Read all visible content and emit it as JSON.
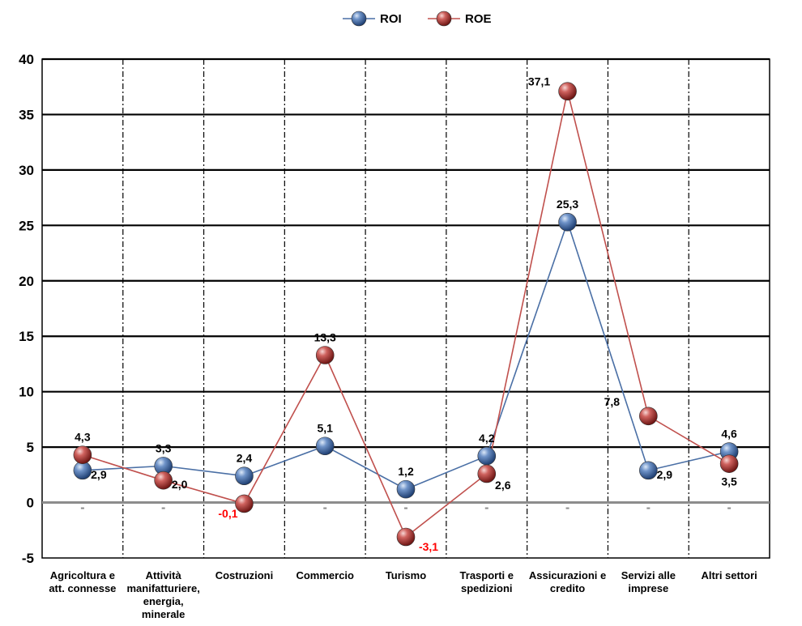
{
  "chart_data": {
    "type": "line",
    "categories": [
      [
        "Agricoltura e",
        "att. connesse"
      ],
      [
        "Attività",
        "manifatturiere,",
        "energia,",
        "minerale"
      ],
      [
        "Costruzioni"
      ],
      [
        "Commercio"
      ],
      [
        "Turismo"
      ],
      [
        "Trasporti e",
        "spedizioni"
      ],
      [
        "Assicurazioni e",
        "credito"
      ],
      [
        "Servizi alle",
        "imprese"
      ],
      [
        "Altri settori"
      ]
    ],
    "series": [
      {
        "name": "ROI",
        "color": "#4a6fa5",
        "values": [
          2.9,
          3.3,
          2.4,
          5.1,
          1.2,
          4.2,
          25.3,
          2.9,
          4.6
        ],
        "labels": [
          "2,9",
          "3,3",
          "2,4",
          "5,1",
          "1,2",
          "4,2",
          "25,3",
          "2,9",
          "4,6"
        ]
      },
      {
        "name": "ROE",
        "color": "#c0504d",
        "values": [
          4.3,
          2.0,
          -0.1,
          13.3,
          -3.1,
          2.6,
          37.1,
          7.8,
          3.5
        ],
        "labels": [
          "4,3",
          "2,0",
          "-0,1",
          "13,3",
          "-3,1",
          "2,6",
          "37,1",
          "7,8",
          "3,5"
        ]
      }
    ],
    "negative_label_color": "#ff0000",
    "ylim": [
      -5,
      40
    ],
    "yticks": [
      -5,
      0,
      5,
      10,
      15,
      20,
      25,
      30,
      35,
      40
    ],
    "ytick_labels": [
      "-5",
      "0",
      "5",
      "10",
      "15",
      "20",
      "25",
      "30",
      "35",
      "40"
    ],
    "grid": true,
    "legend": "top-center",
    "title": "",
    "xlabel": "",
    "ylabel": ""
  }
}
